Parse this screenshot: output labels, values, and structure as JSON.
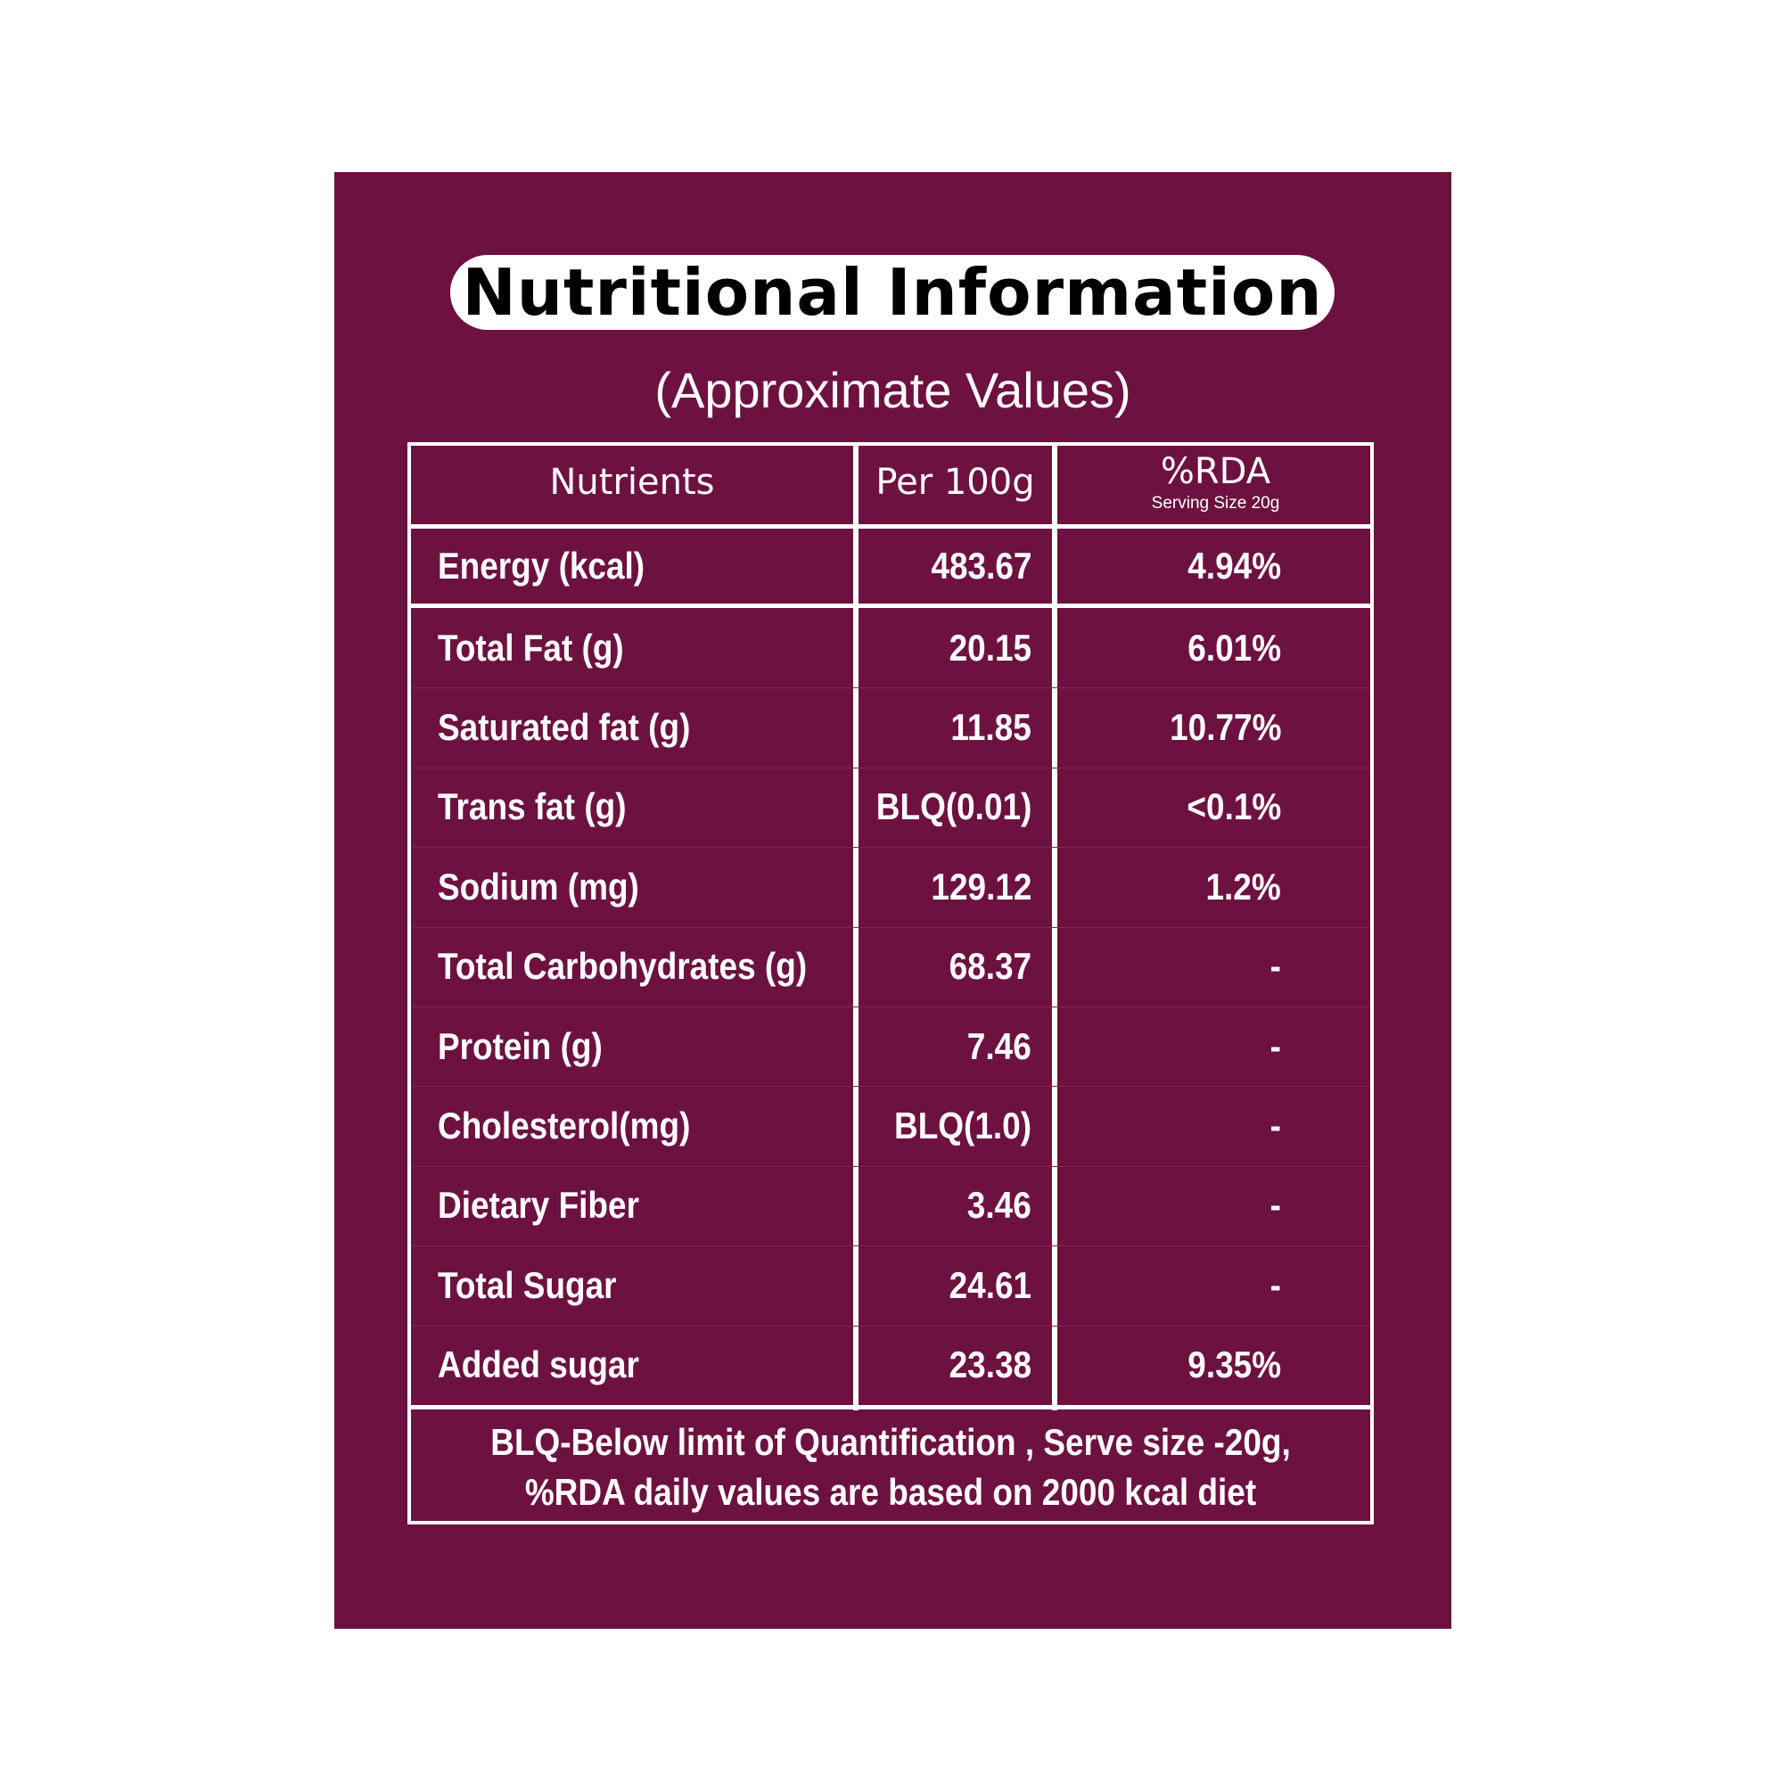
{
  "title": "Nutritional Information",
  "subtitle": "(Approximate Values)",
  "colors": {
    "background": "#6d1240",
    "text": "#ffffff"
  },
  "header": {
    "nutrients": "Nutrients",
    "per100g": "Per 100g",
    "rda": "%RDA",
    "rda_sub": "Serving Size 20g"
  },
  "rows": [
    {
      "name": "Energy (kcal)",
      "value": "483.67",
      "rda": "4.94%"
    },
    {
      "name": "Total Fat (g)",
      "value": "20.15",
      "rda": "6.01%"
    },
    {
      "name": "Saturated fat (g)",
      "value": "11.85",
      "rda": "10.77%"
    },
    {
      "name": "Trans fat (g)",
      "value": "BLQ(0.01)",
      "rda": "<0.1%"
    },
    {
      "name": "Sodium (mg)",
      "value": "129.12",
      "rda": "1.2%"
    },
    {
      "name": "Total Carbohydrates (g)",
      "value": "68.37",
      "rda": "-"
    },
    {
      "name": "Protein (g)",
      "value": "7.46",
      "rda": "-"
    },
    {
      "name": "Cholesterol(mg)",
      "value": "BLQ(1.0)",
      "rda": "-"
    },
    {
      "name": "Dietary Fiber",
      "value": "3.46",
      "rda": "-"
    },
    {
      "name": "Total Sugar",
      "value": "24.61",
      "rda": "-"
    },
    {
      "name": "Added sugar",
      "value": "23.38",
      "rda": "9.35%"
    }
  ],
  "footer": {
    "line1": "BLQ-Below limit of Quantification , Serve size -20g,",
    "line2": "%RDA daily values are based on 2000 kcal diet"
  }
}
